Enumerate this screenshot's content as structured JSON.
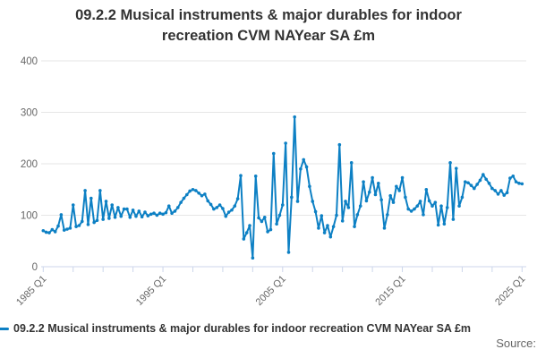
{
  "title": {
    "line1": "09.2.2 Musical instruments & major durables for indoor",
    "line2": "recreation CVM NAYear SA £m"
  },
  "legend": {
    "label": "09.2.2 Musical instruments & major durables for indoor recreation CVM NAYear SA £m"
  },
  "source": {
    "label": "Source:"
  },
  "colors": {
    "series": "#0d80c4",
    "grid": "#e6e6e6",
    "axis": "#ccd6eb",
    "axis_label": "#666666",
    "title_text": "#333333",
    "legend_text": "#333333",
    "source_text": "#666666"
  },
  "chart_data": {
    "type": "line",
    "title": "09.2.2 Musical instruments & major durables for indoor recreation CVM NAYear SA £m",
    "xlabel": "",
    "ylabel": "",
    "ylim": [
      0,
      400
    ],
    "y_ticks": [
      0,
      100,
      200,
      300,
      400
    ],
    "grid": "horizontal",
    "legend_position": "bottom-left",
    "x_unit": "quarterly",
    "x_range": [
      "1985 Q1",
      "2025 Q1"
    ],
    "x_tick_interval_years": 2.5,
    "x_labeled_ticks": [
      "1985 Q1",
      "1995 Q1",
      "2005 Q1",
      "2015 Q1",
      "2025 Q1"
    ],
    "series": [
      {
        "name": "09.2.2 Musical instruments & major durables for indoor recreation CVM NAYear SA £m",
        "color": "#0d80c4",
        "start": "1985 Q1",
        "frequency": "quarterly",
        "markers": true,
        "values": [
          70,
          67,
          66,
          72,
          68,
          79,
          101,
          71,
          73,
          75,
          120,
          78,
          80,
          88,
          148,
          82,
          133,
          86,
          90,
          148,
          92,
          127,
          94,
          120,
          96,
          115,
          98,
          112,
          112,
          96,
          110,
          98,
          108,
          97,
          106,
          99,
          102,
          104,
          100,
          104,
          102,
          105,
          118,
          104,
          108,
          115,
          125,
          133,
          140,
          147,
          150,
          148,
          143,
          138,
          141,
          128,
          121,
          112,
          115,
          120,
          113,
          98,
          106,
          110,
          118,
          132,
          177,
          54,
          66,
          80,
          17,
          176,
          95,
          88,
          96,
          68,
          72,
          220,
          83,
          100,
          120,
          240,
          28,
          135,
          291,
          127,
          190,
          208,
          194,
          156,
          127,
          107,
          75,
          99,
          66,
          80,
          58,
          78,
          100,
          237,
          89,
          127,
          115,
          202,
          78,
          101,
          118,
          165,
          128,
          145,
          173,
          140,
          162,
          130,
          75,
          101,
          138,
          125,
          156,
          148,
          173,
          135,
          112,
          108,
          112,
          118,
          127,
          101,
          150,
          128,
          118,
          125,
          81,
          118,
          83,
          115,
          202,
          92,
          191,
          118,
          135,
          165,
          163,
          158,
          152,
          160,
          168,
          179,
          170,
          162,
          152,
          148,
          141,
          148,
          139,
          144,
          172,
          176,
          165,
          162,
          161
        ]
      }
    ]
  }
}
